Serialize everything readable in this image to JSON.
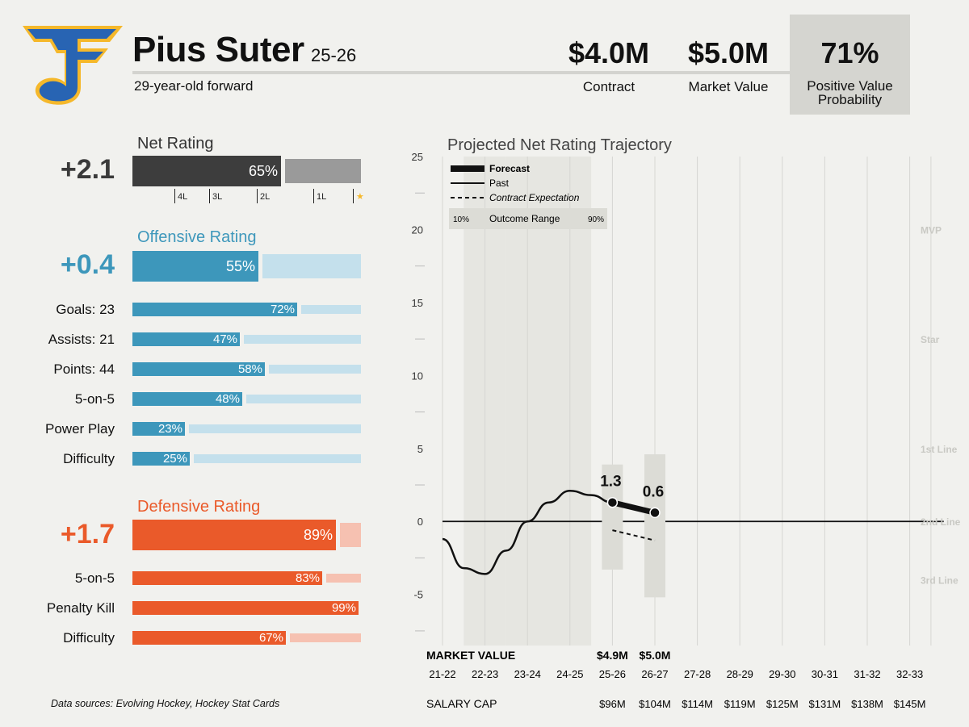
{
  "colors": {
    "dark_bar": "#3d3d3d",
    "gray_bar": "#9a9a9a",
    "blue": "#3d97bb",
    "light_blue": "#c4e0ec",
    "orange": "#ea5a2a",
    "light_orange": "#f6c1b1",
    "logo_blue": "#2864b3",
    "logo_gold": "#f5b82b"
  },
  "header": {
    "player_name": "Pius Suter",
    "season": "25-26",
    "subtitle": "29-year-old forward",
    "contract_value": "$4.0M",
    "contract_label": "Contract",
    "market_value": "$5.0M",
    "market_label": "Market Value",
    "pvp_value": "71%",
    "pvp_label_line1": "Positive Value",
    "pvp_label_line2": "Probability"
  },
  "net_rating": {
    "title": "Net Rating",
    "value": "+2.1",
    "percent_text": "65%",
    "percent": 65,
    "ticks": [
      "4L",
      "3L",
      "2L",
      "1L"
    ],
    "star_icon": "star-icon"
  },
  "offensive": {
    "title": "Offensive Rating",
    "value": "+0.4",
    "percent_text": "55%",
    "percent": 55,
    "rows": [
      {
        "label": "Goals: 23",
        "pct_text": "72%",
        "pct": 72
      },
      {
        "label": "Assists: 21",
        "pct_text": "47%",
        "pct": 47
      },
      {
        "label": "Points: 44",
        "pct_text": "58%",
        "pct": 58
      },
      {
        "label": "5-on-5",
        "pct_text": "48%",
        "pct": 48
      },
      {
        "label": "Power Play",
        "pct_text": "23%",
        "pct": 23
      },
      {
        "label": "Difficulty",
        "pct_text": "25%",
        "pct": 25
      }
    ]
  },
  "defensive": {
    "title": "Defensive Rating",
    "value": "+1.7",
    "percent_text": "89%",
    "percent": 89,
    "rows": [
      {
        "label": "5-on-5",
        "pct_text": "83%",
        "pct": 83
      },
      {
        "label": "Penalty Kill",
        "pct_text": "99%",
        "pct": 99
      },
      {
        "label": "Difficulty",
        "pct_text": "67%",
        "pct": 67
      }
    ]
  },
  "sources": "Data sources: Evolving Hockey, Hockey Stat Cards",
  "chart_data": {
    "type": "line",
    "title": "Projected Net Rating Trajectory",
    "ylim": [
      -8.5,
      25
    ],
    "yticks": [
      -5,
      0,
      5,
      10,
      15,
      20,
      25
    ],
    "categories": [
      "21-22",
      "22-23",
      "23-24",
      "24-25",
      "25-26",
      "26-27",
      "27-28",
      "28-29",
      "29-30",
      "30-31",
      "31-32",
      "32-33"
    ],
    "tier_labels": [
      {
        "label": "MVP",
        "y": 20
      },
      {
        "label": "Star",
        "y": 12.5
      },
      {
        "label": "1st Line",
        "y": 5
      },
      {
        "label": "2nd Line",
        "y": 0
      },
      {
        "label": "3rd Line",
        "y": -4
      }
    ],
    "legend": {
      "forecast": "Forecast",
      "past": "Past",
      "contract_expectation": "Contract Expectation",
      "range_low": "10%",
      "range_label": "Outcome Range",
      "range_high": "90%"
    },
    "past_series": [
      {
        "x": 0,
        "y": -1.2
      },
      {
        "x": 0.5,
        "y": -3.2
      },
      {
        "x": 1,
        "y": -3.6
      },
      {
        "x": 1.5,
        "y": -2.0
      },
      {
        "x": 2,
        "y": 0.0
      },
      {
        "x": 2.5,
        "y": 1.3
      },
      {
        "x": 3,
        "y": 2.1
      },
      {
        "x": 3.5,
        "y": 1.8
      },
      {
        "x": 4,
        "y": 1.3
      }
    ],
    "forecast_series": [
      {
        "x": 4,
        "y": 1.3,
        "label": "1.3"
      },
      {
        "x": 5,
        "y": 0.6,
        "label": "0.6"
      }
    ],
    "contract_expectation": [
      {
        "x": 4,
        "y": -0.6
      },
      {
        "x": 5,
        "y": -1.3
      }
    ],
    "outcome_ranges": [
      {
        "x": 4,
        "low": -3.3,
        "high": 3.9
      },
      {
        "x": 5,
        "low": -5.2,
        "high": 4.6
      }
    ],
    "shaded_seasons": [
      1,
      2,
      3
    ],
    "market_value_label": "MARKET VALUE",
    "market_values": [
      {
        "x": 4,
        "text": "$4.9M"
      },
      {
        "x": 5,
        "text": "$5.0M"
      }
    ],
    "salary_cap_label": "SALARY CAP",
    "salary_cap": [
      {
        "x": 4,
        "text": "$96M"
      },
      {
        "x": 5,
        "text": "$104M"
      },
      {
        "x": 6,
        "text": "$114M"
      },
      {
        "x": 7,
        "text": "$119M"
      },
      {
        "x": 8,
        "text": "$125M"
      },
      {
        "x": 9,
        "text": "$131M"
      },
      {
        "x": 10,
        "text": "$138M"
      },
      {
        "x": 11,
        "text": "$145M"
      }
    ]
  }
}
